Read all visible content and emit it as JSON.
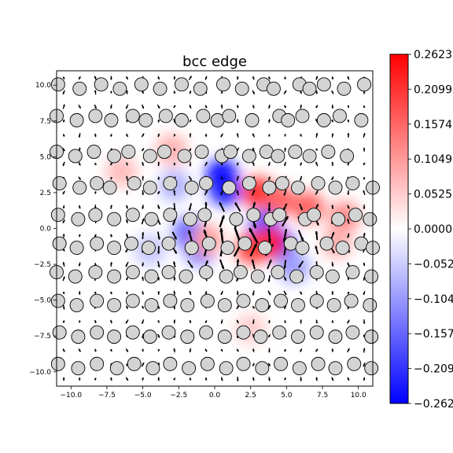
{
  "chart_data": {
    "type": "heatmap",
    "title": "bcc edge",
    "xlim": [
      -11,
      11
    ],
    "ylim": [
      -11,
      11
    ],
    "x_ticks": [
      "−10.0",
      "−7.5",
      "−5.0",
      "−2.5",
      "0.0",
      "2.5",
      "5.0",
      "7.5",
      "10.0"
    ],
    "x_tick_values": [
      -10,
      -7.5,
      -5,
      -2.5,
      0,
      2.5,
      5,
      7.5,
      10
    ],
    "y_ticks": [
      "10.0",
      "7.5",
      "5.0",
      "2.5",
      "0.0",
      "−2.5",
      "−5.0",
      "−7.5",
      "−10.0"
    ],
    "y_tick_values": [
      10,
      7.5,
      5,
      2.5,
      0,
      -2.5,
      -5,
      -7.5,
      -10
    ],
    "colormap": "bwr",
    "colorbar": {
      "min": -0.2623,
      "max": 0.2623,
      "tick_labels": [
        "0.2623",
        "0.2099",
        "0.1574",
        "0.1049",
        "0.0525",
        "0.0000",
        "−0.0525",
        "−0.1049",
        "−0.1574",
        "−0.2099",
        "−0.2623"
      ],
      "tick_values": [
        0.2623,
        0.2099,
        0.1574,
        0.1049,
        0.0525,
        0.0,
        -0.0525,
        -0.1049,
        -0.1574,
        -0.2099,
        -0.2623
      ]
    },
    "field_blobs": [
      {
        "x": 0.5,
        "y": 3.7,
        "value": -0.26
      },
      {
        "x": 0.7,
        "y": 2.7,
        "value": -0.24
      },
      {
        "x": -1.8,
        "y": -0.3,
        "value": -0.16
      },
      {
        "x": -1.0,
        "y": -1.5,
        "value": -0.14
      },
      {
        "x": 4.5,
        "y": -1.2,
        "value": -0.22
      },
      {
        "x": 3.5,
        "y": 0.2,
        "value": -0.18
      },
      {
        "x": 5.5,
        "y": -2.7,
        "value": -0.1
      },
      {
        "x": 3.0,
        "y": 2.5,
        "value": 0.22
      },
      {
        "x": 4.5,
        "y": 2.0,
        "value": 0.16
      },
      {
        "x": 6.5,
        "y": 1.5,
        "value": 0.16
      },
      {
        "x": 3.8,
        "y": -1.0,
        "value": 0.24
      },
      {
        "x": 2.6,
        "y": -1.4,
        "value": 0.2
      },
      {
        "x": -0.5,
        "y": -0.8,
        "value": 0.1
      },
      {
        "x": 9.0,
        "y": 0.8,
        "value": 0.12
      },
      {
        "x": -3.0,
        "y": 5.5,
        "value": 0.08
      },
      {
        "x": -6.5,
        "y": 4.0,
        "value": 0.07
      },
      {
        "x": -4.5,
        "y": -1.5,
        "value": -0.06
      },
      {
        "x": 8.5,
        "y": -1.0,
        "value": 0.08
      },
      {
        "x": 2.5,
        "y": -7.0,
        "value": 0.05
      },
      {
        "x": -2.8,
        "y": 3.0,
        "value": -0.08
      }
    ],
    "atom_rows": [
      {
        "y": 9.9,
        "x": [
          -10.9,
          -9.4,
          -7.9,
          -6.6,
          -5.1,
          -3.8,
          -2.3,
          -1.0,
          0.6,
          1.9,
          3.4,
          4.1,
          5.9,
          6.6,
          7.6,
          9.0,
          10.4
        ]
      },
      {
        "y": 7.7,
        "x": [
          -11,
          -9.6,
          -8.3,
          -7.2,
          -5.7,
          -4.8,
          -3.4,
          -2.3,
          -0.8,
          0.2,
          1.0,
          2.6,
          4.5,
          5.1,
          6.1,
          7.6,
          8.7,
          10.2
        ]
      },
      {
        "y": 5.2,
        "x": [
          -11,
          -9.7,
          -8.4,
          -7.0,
          -6.0,
          -4.5,
          -3.5,
          -2.1,
          -0.9,
          0.5,
          1.1,
          2.4,
          3.6,
          4.4,
          5.6,
          6.6,
          7.9,
          9.2
        ]
      },
      {
        "y": 3.0,
        "x": [
          -10.8,
          -9.4,
          -8.2,
          -7.3,
          -5.6,
          -4.5,
          -3.1,
          -1.6,
          -0.6,
          1.0,
          2.4,
          3.8,
          4.7,
          5.8,
          7.2,
          8.4,
          9.6,
          11
        ]
      },
      {
        "y": 0.8,
        "x": [
          -10.9,
          -9.5,
          -8.3,
          -7.0,
          -5.7,
          -4.4,
          -3.1,
          -1.7,
          -0.7,
          1.5,
          2.7,
          3.9,
          4.5,
          6.3,
          6.9,
          8.6,
          9.8,
          10.8
        ]
      },
      {
        "y": -1.2,
        "x": [
          -10.8,
          -9.6,
          -8.2,
          -7.0,
          -5.8,
          -4.6,
          -3.2,
          -1.6,
          -0.4,
          0.9,
          2.1,
          3.5,
          5.3,
          6.1,
          7.8,
          8.9,
          10.2,
          11
        ]
      },
      {
        "y": -3.2,
        "x": [
          -11,
          -9.7,
          -8.3,
          -7.0,
          -5.7,
          -4.4,
          -3.2,
          -2.0,
          -0.6,
          0.8,
          1.8,
          3.0,
          4.4,
          5.7,
          7.1,
          8.2,
          9.6,
          10.9
        ]
      },
      {
        "y": -5.2,
        "x": [
          -10.9,
          -9.6,
          -8.2,
          -7.0,
          -5.7,
          -4.4,
          -3.1,
          -1.9,
          -0.5,
          0.7,
          2.0,
          3.3,
          4.6,
          5.8,
          7.1,
          8.3,
          9.5,
          10.8
        ]
      },
      {
        "y": -7.4,
        "x": [
          -10.8,
          -9.5,
          -8.2,
          -7.0,
          -5.7,
          -4.5,
          -3.2,
          -1.9,
          -0.6,
          0.7,
          2.0,
          3.2,
          4.5,
          5.8,
          7.1,
          8.4,
          9.6,
          10.9
        ]
      },
      {
        "y": -9.6,
        "x": [
          -10.9,
          -9.5,
          -8.2,
          -6.8,
          -5.6,
          -4.3,
          -3.1,
          -1.8,
          -0.5,
          0.8,
          2.0,
          3.3,
          4.6,
          5.9,
          7.2,
          8.4,
          9.7,
          10.9
        ]
      }
    ]
  }
}
